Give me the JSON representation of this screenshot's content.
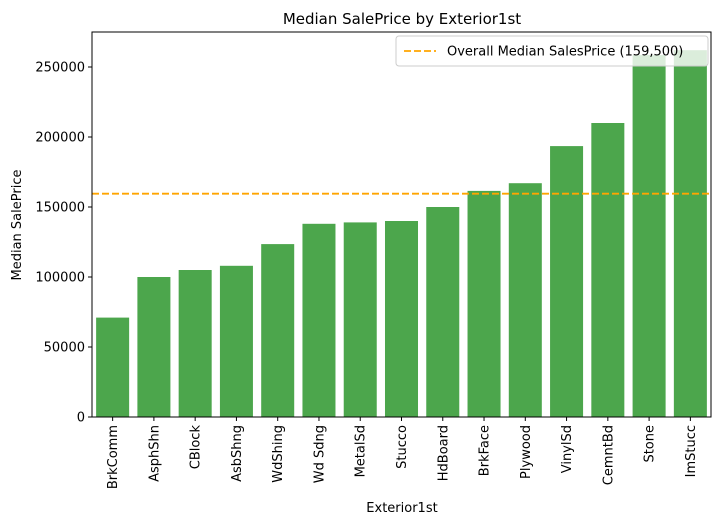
{
  "chart_data": {
    "type": "bar",
    "title": "Median SalePrice by Exterior1st",
    "xlabel": "Exterior1st",
    "ylabel": "Median SalePrice",
    "categories": [
      "BrkComm",
      "AsphShn",
      "CBlock",
      "AsbShng",
      "WdShing",
      "Wd Sdng",
      "MetalSd",
      "Stucco",
      "HdBoard",
      "BrkFace",
      "Plywood",
      "VinylSd",
      "CemntBd",
      "Stone",
      "ImStucc"
    ],
    "values": [
      71000,
      100000,
      105000,
      108000,
      123500,
      138000,
      139000,
      140000,
      150000,
      161500,
      167000,
      193500,
      210000,
      258500,
      262000
    ],
    "ylim": [
      0,
      275000
    ],
    "yticks": [
      0,
      50000,
      100000,
      150000,
      200000,
      250000
    ],
    "bar_color": "#4ca64c",
    "reference_line": {
      "value": 159500,
      "label": "Overall Median SalesPrice (159,500)",
      "color": "#ffa500",
      "style": "dashed"
    },
    "legend_position": "top-right",
    "grid": false
  }
}
